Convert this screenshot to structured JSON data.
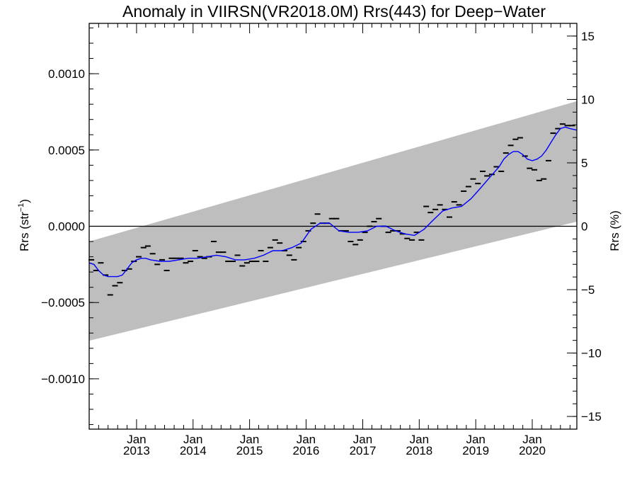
{
  "chart_data": {
    "type": "scatter",
    "title": "Anomaly in VIIRSN(VR2018.0M) Rrs(443) for Deep−Water",
    "ylabel_left": {
      "base": "Rrs (str",
      "sup": "−1",
      "close": ")"
    },
    "ylabel_right": "Rrs (%)",
    "xlim": [
      "2012-03-01",
      "2020-10-15"
    ],
    "ylim_left": [
      -0.00133,
      0.00133
    ],
    "ylim_right": [
      -16,
      16
    ],
    "x_ticks": [
      {
        "date": "2013-01-01",
        "line1": "Jan",
        "line2": "2013"
      },
      {
        "date": "2014-01-01",
        "line1": "Jan",
        "line2": "2014"
      },
      {
        "date": "2015-01-01",
        "line1": "Jan",
        "line2": "2015"
      },
      {
        "date": "2016-01-01",
        "line1": "Jan",
        "line2": "2016"
      },
      {
        "date": "2017-01-01",
        "line1": "Jan",
        "line2": "2017"
      },
      {
        "date": "2018-01-01",
        "line1": "Jan",
        "line2": "2018"
      },
      {
        "date": "2019-01-01",
        "line1": "Jan",
        "line2": "2019"
      },
      {
        "date": "2020-01-01",
        "line1": "Jan",
        "line2": "2020"
      }
    ],
    "y_ticks_left": [
      {
        "value": 0.001,
        "label": "0.0010"
      },
      {
        "value": 0.0005,
        "label": "0.0005"
      },
      {
        "value": 0.0,
        "label": "0.0000"
      },
      {
        "value": -0.0005,
        "label": "−0.0005"
      },
      {
        "value": -0.001,
        "label": "−0.0010"
      }
    ],
    "y_ticks_right": [
      {
        "value": 15,
        "label": "15"
      },
      {
        "value": 10,
        "label": "10"
      },
      {
        "value": 5,
        "label": "5"
      },
      {
        "value": 0,
        "label": "0"
      },
      {
        "value": -5,
        "label": "−5"
      },
      {
        "value": -10,
        "label": "−10"
      },
      {
        "value": -15,
        "label": "−15"
      }
    ],
    "band": {
      "x": [
        "2012-03-01",
        "2020-10-15"
      ],
      "upper": [
        -0.0001,
        0.00082
      ],
      "lower": [
        -0.00075,
        3e-05
      ]
    },
    "zero_line": 0,
    "series": [
      {
        "marker": "dash",
        "x": [
          "2012-03-15",
          "2012-04-15",
          "2012-05-15",
          "2012-06-15",
          "2012-07-15",
          "2012-08-15",
          "2012-09-15",
          "2012-10-15",
          "2012-11-15",
          "2012-12-15",
          "2013-01-15",
          "2013-02-15",
          "2013-03-15",
          "2013-04-15",
          "2013-05-15",
          "2013-06-15",
          "2013-07-15",
          "2013-08-15",
          "2013-09-15",
          "2013-10-15",
          "2013-11-15",
          "2013-12-15",
          "2014-01-15",
          "2014-02-15",
          "2014-03-15",
          "2014-04-15",
          "2014-05-15",
          "2014-06-15",
          "2014-07-15",
          "2014-08-15",
          "2014-09-15",
          "2014-10-15",
          "2014-11-15",
          "2014-12-15",
          "2015-01-15",
          "2015-02-15",
          "2015-03-15",
          "2015-04-15",
          "2015-05-15",
          "2015-06-15",
          "2015-07-15",
          "2015-08-15",
          "2015-09-15",
          "2015-10-15",
          "2015-11-15",
          "2015-12-15",
          "2016-01-15",
          "2016-02-15",
          "2016-03-15",
          "2016-04-15",
          "2016-05-15",
          "2016-06-15",
          "2016-07-15",
          "2016-08-15",
          "2016-09-15",
          "2016-10-15",
          "2016-11-15",
          "2016-12-15",
          "2017-01-15",
          "2017-02-15",
          "2017-03-15",
          "2017-04-15",
          "2017-05-15",
          "2017-06-15",
          "2017-07-15",
          "2017-08-15",
          "2017-09-15",
          "2017-10-15",
          "2017-11-15",
          "2017-12-15",
          "2018-01-15",
          "2018-02-15",
          "2018-03-15",
          "2018-04-15",
          "2018-05-15",
          "2018-06-15",
          "2018-07-15",
          "2018-08-15",
          "2018-09-15",
          "2018-10-15",
          "2018-11-15",
          "2018-12-15",
          "2019-01-15",
          "2019-02-15",
          "2019-03-15",
          "2019-04-15",
          "2019-05-15",
          "2019-06-15",
          "2019-07-15",
          "2019-08-15",
          "2019-09-15",
          "2019-10-15",
          "2019-11-15",
          "2019-12-15",
          "2020-01-15",
          "2020-02-15",
          "2020-03-15",
          "2020-04-15",
          "2020-05-15",
          "2020-06-15",
          "2020-07-15",
          "2020-08-15",
          "2020-09-15"
        ],
        "y": [
          -0.00022,
          -0.00029,
          -0.00024,
          -0.00032,
          -0.00045,
          -0.00039,
          -0.00037,
          -0.00029,
          -0.00028,
          -0.00023,
          -0.0002,
          -0.00014,
          -0.00013,
          -0.00018,
          -0.00025,
          -0.00022,
          -0.00029,
          -0.00021,
          -0.00021,
          -0.00021,
          -0.00024,
          -0.00023,
          -0.00016,
          -0.0002,
          -0.00021,
          -0.0002,
          -0.0001,
          -0.00017,
          -0.00017,
          -0.00023,
          -0.00023,
          -0.00019,
          -0.00026,
          -0.00024,
          -0.00023,
          -0.00023,
          -0.00016,
          -0.00023,
          -0.00014,
          -9e-05,
          -0.00011,
          -0.00016,
          -0.00019,
          -0.00022,
          -0.00014,
          -0.0001,
          -3e-05,
          2e-05,
          8e-05,
          2e-05,
          2e-05,
          5e-05,
          5e-05,
          -3e-05,
          -3e-05,
          -0.0001,
          -0.00012,
          -9e-05,
          -4e-05,
          0.0,
          3e-05,
          5e-05,
          0.0,
          -4e-05,
          -3e-05,
          -3e-05,
          -5e-05,
          -8e-05,
          -9e-05,
          -4e-05,
          -9e-05,
          0.00013,
          9e-05,
          0.00011,
          0.00014,
          0.00011,
          6e-05,
          0.00016,
          0.00014,
          0.00023,
          0.00026,
          0.00031,
          0.00028,
          0.00036,
          0.00033,
          0.00034,
          0.00039,
          0.00036,
          0.00048,
          0.00053,
          0.00057,
          0.00058,
          0.00046,
          0.00038,
          0.00037,
          0.0003,
          0.00031,
          0.00043,
          0.00061,
          0.00064,
          0.00067,
          0.00066,
          0.00066
        ]
      },
      {
        "marker": "line",
        "color": "#0000ff",
        "x": [
          "2012-03-01",
          "2012-04-01",
          "2012-05-01",
          "2012-06-01",
          "2012-07-01",
          "2012-08-01",
          "2012-09-01",
          "2012-10-01",
          "2012-11-01",
          "2012-12-01",
          "2013-01-01",
          "2013-02-01",
          "2013-03-01",
          "2013-04-01",
          "2013-06-01",
          "2013-08-01",
          "2013-10-01",
          "2013-12-01",
          "2014-02-01",
          "2014-04-01",
          "2014-06-01",
          "2014-08-01",
          "2014-10-01",
          "2014-12-01",
          "2015-02-01",
          "2015-04-01",
          "2015-06-01",
          "2015-08-01",
          "2015-10-01",
          "2015-12-01",
          "2016-02-01",
          "2016-04-01",
          "2016-06-01",
          "2016-08-01",
          "2016-10-01",
          "2016-12-01",
          "2017-02-01",
          "2017-04-01",
          "2017-06-01",
          "2017-08-01",
          "2017-10-01",
          "2017-12-01",
          "2018-02-01",
          "2018-04-01",
          "2018-06-01",
          "2018-08-01",
          "2018-10-01",
          "2018-12-01",
          "2019-02-01",
          "2019-04-01",
          "2019-06-01",
          "2019-07-01",
          "2019-08-01",
          "2019-09-01",
          "2019-10-01",
          "2019-11-01",
          "2019-12-01",
          "2020-01-01",
          "2020-02-01",
          "2020-03-01",
          "2020-04-01",
          "2020-05-01",
          "2020-06-01",
          "2020-07-01",
          "2020-08-01",
          "2020-09-01",
          "2020-10-15"
        ],
        "y": [
          -0.00024,
          -0.00025,
          -0.00029,
          -0.00032,
          -0.00033,
          -0.00033,
          -0.00033,
          -0.00032,
          -0.00028,
          -0.00024,
          -0.00022,
          -0.00021,
          -0.00021,
          -0.00022,
          -0.00023,
          -0.00023,
          -0.00022,
          -0.00021,
          -0.00021,
          -0.0002,
          -0.00019,
          -0.0002,
          -0.00022,
          -0.00022,
          -0.00021,
          -0.00019,
          -0.00016,
          -0.00016,
          -0.00014,
          -0.00011,
          -2e-05,
          2e-05,
          2e-05,
          -3e-05,
          -4e-05,
          -4e-05,
          -3e-05,
          0.0,
          0.0,
          -3e-05,
          -5e-05,
          -6e-05,
          -2e-05,
          4e-05,
          0.0001,
          0.00012,
          0.00013,
          0.00018,
          0.00025,
          0.00032,
          0.00039,
          0.00044,
          0.00047,
          0.00049,
          0.00049,
          0.00047,
          0.00044,
          0.00043,
          0.00044,
          0.00046,
          0.0005,
          0.00055,
          0.0006,
          0.00064,
          0.00065,
          0.00064,
          0.00063
        ]
      }
    ]
  },
  "colors": {
    "band": "#bebebe",
    "smooth_line": "#0000ff",
    "points": "#000000",
    "axes": "#000000"
  }
}
